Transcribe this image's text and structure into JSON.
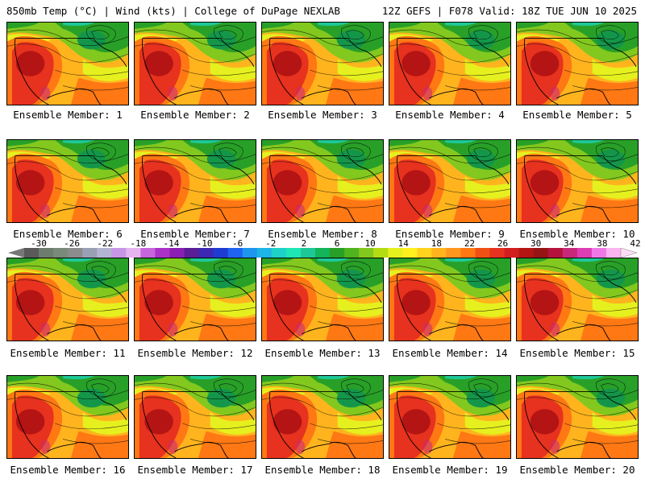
{
  "header": {
    "left_title": "850mb Temp (°C) | Wind (kts) | College of DuPage NEXLAB",
    "right_title": "12Z GEFS | F078 Valid: 18Z TUE JUN 10 2025"
  },
  "colorbar": {
    "tick_labels": [
      "-30",
      "-26",
      "-22",
      "-18",
      "-14",
      "-10",
      "-6",
      "-2",
      "2",
      "6",
      "10",
      "14",
      "18",
      "22",
      "26",
      "30",
      "34",
      "38",
      "42"
    ],
    "colors": [
      "#5a5a5a",
      "#6e7c6e",
      "#7a8a7a",
      "#8c8c8c",
      "#9aa0b4",
      "#b4b4d2",
      "#c896e6",
      "#e6b4f0",
      "#c864dc",
      "#aa32c8",
      "#8c1eb4",
      "#5a1e96",
      "#3c28b4",
      "#1e3cd2",
      "#1e64f0",
      "#1e96f0",
      "#1eb4e6",
      "#1ed2c8",
      "#1ee6b4",
      "#1ec896",
      "#14b45a",
      "#28a028",
      "#50b41e",
      "#82c81e",
      "#b4dc14",
      "#e6f01e",
      "#fff01e",
      "#ffd21e",
      "#ffb41e",
      "#ff961e",
      "#ff7814",
      "#f05014",
      "#e6321e",
      "#d21e1e",
      "#b41414",
      "#961414",
      "#b4143c",
      "#c8287a",
      "#dc3cb4",
      "#f078e6",
      "#fab4f0"
    ]
  },
  "panels": [
    {
      "label": "Ensemble Member: 1"
    },
    {
      "label": "Ensemble Member: 2"
    },
    {
      "label": "Ensemble Member: 3"
    },
    {
      "label": "Ensemble Member: 4"
    },
    {
      "label": "Ensemble Member: 5"
    },
    {
      "label": "Ensemble Member: 6"
    },
    {
      "label": "Ensemble Member: 7"
    },
    {
      "label": "Ensemble Member: 8"
    },
    {
      "label": "Ensemble Member: 9"
    },
    {
      "label": "Ensemble Member: 10"
    },
    {
      "label": "Ensemble Member: 11"
    },
    {
      "label": "Ensemble Member: 12"
    },
    {
      "label": "Ensemble Member: 13"
    },
    {
      "label": "Ensemble Member: 14"
    },
    {
      "label": "Ensemble Member: 15"
    },
    {
      "label": "Ensemble Member: 16"
    },
    {
      "label": "Ensemble Member: 17"
    },
    {
      "label": "Ensemble Member: 18"
    },
    {
      "label": "Ensemble Member: 19"
    },
    {
      "label": "Ensemble Member: 20"
    }
  ],
  "map_colors": {
    "hot_core": "#b41414",
    "hot": "#e6321e",
    "warm": "#ff7814",
    "orange": "#ffb41e",
    "yellow": "#e6f01e",
    "light_green": "#82c81e",
    "green": "#28a028",
    "dark_green": "#14964a",
    "teal": "#1ec896",
    "magenta_spot": "#c8287a"
  }
}
